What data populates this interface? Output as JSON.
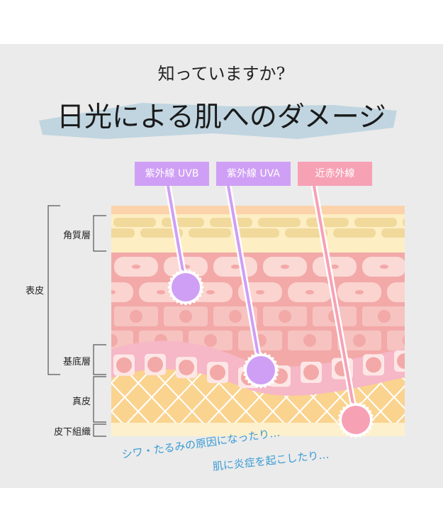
{
  "heading": {
    "question": "知っていますか?",
    "title": "日光による肌へのダメージ"
  },
  "rays": [
    {
      "label": "紫外線 UVB",
      "color": "#cf9ff5"
    },
    {
      "label": "紫外線 UVA",
      "color": "#cf9ff5"
    },
    {
      "label": "近赤外線",
      "color": "#f7a1b5"
    }
  ],
  "layers": {
    "epidermis": "表皮",
    "stratum_corneum": "角質層",
    "basal": "基底層",
    "dermis": "真皮",
    "subcutaneous": "皮下組織"
  },
  "captions": [
    "シワ・たるみの原因になったり…",
    "肌に炎症を起こしたり…"
  ],
  "colors": {
    "panel": "#ebebeb",
    "caption": "#3a9bd5",
    "brush": "#b9d1de"
  }
}
